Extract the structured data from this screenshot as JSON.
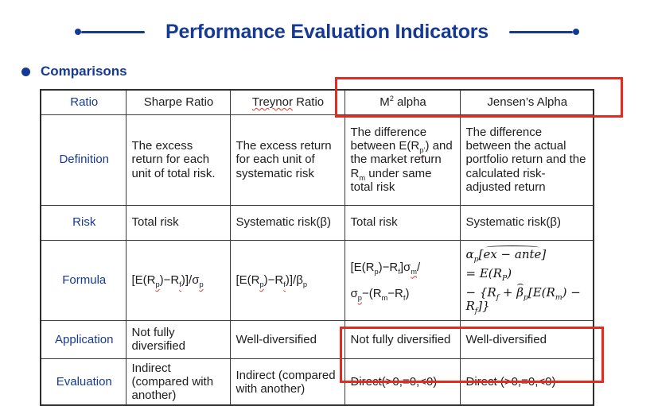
{
  "slide": {
    "title": "Performance Evaluation Indicators",
    "section_heading": "Comparisons"
  },
  "colors": {
    "accent_navy": "#163a94",
    "highlight_red": "#e8291d",
    "table_border": "#3c3c3c",
    "body_text": "#1d1d1d"
  },
  "table": {
    "corner_label": "Ratio",
    "columns": [
      "Sharpe Ratio",
      "<span class='sq'>Treynor</span> Ratio",
      "M<sup>2</sup> alpha",
      "Jensen’s Alpha"
    ],
    "rows": [
      {
        "label": "Definition",
        "cells": [
          "The excess return for each unit of total risk.",
          "The excess return for each unit of systematic risk",
          "The difference between E(R<sub class='sq'>p’</sub>) and the market return R<sub>m</sub> under same total risk",
          "The difference between the actual portfolio return and the calculated risk-adjusted return"
        ]
      },
      {
        "label": "Risk",
        "cells": [
          "Total risk",
          "Systematic risk(β)",
          "Total risk",
          "Systematic risk(β)"
        ]
      },
      {
        "label": "Formula",
        "cells": [
          "[E(R<sub class='sq'>p</sub>)−R<sub class='sq'>f</sub>)]/σ<sub class='sq'>p</sub>",
          "[E(R<sub class='sq'>p</sub>)−R<sub class='sq'>f</sub>)]/β<sub>p</sub>",
          "<div class='fl fl-top'>[E(R<sub>p</sub>)−R<sub>f</sub>]σ<sub class='sq'>m</sub>/</div><div class='fl'>σ<sub class='sq'>p</sub>−(R<sub>m</sub>−R<sub>f</sub>)</div>",
          "<div class='ml'>α<sub>p</sub>[<span class='hat'>ex − ante</span>]</div><div class='ml'>= E(R<sub>P</sub>)</div><div class='ml'>− {R<sub>f</sub> + <span class='hat'>β</span><sub>p</sub>[E(R<sub>m</sub>) − R<sub>f</sub>]}</div>"
        ]
      },
      {
        "label": "Application",
        "cells": [
          "Not fully diversified",
          "Well-diversified",
          "Not fully diversified",
          "Well-diversified"
        ]
      },
      {
        "label": "Evaluation",
        "cells": [
          "Indirect (compared with another)",
          "Indirect (compared with another)",
          "Direct(>0,=0,<0)",
          "Direct (>0,=0,<0)"
        ]
      }
    ]
  }
}
